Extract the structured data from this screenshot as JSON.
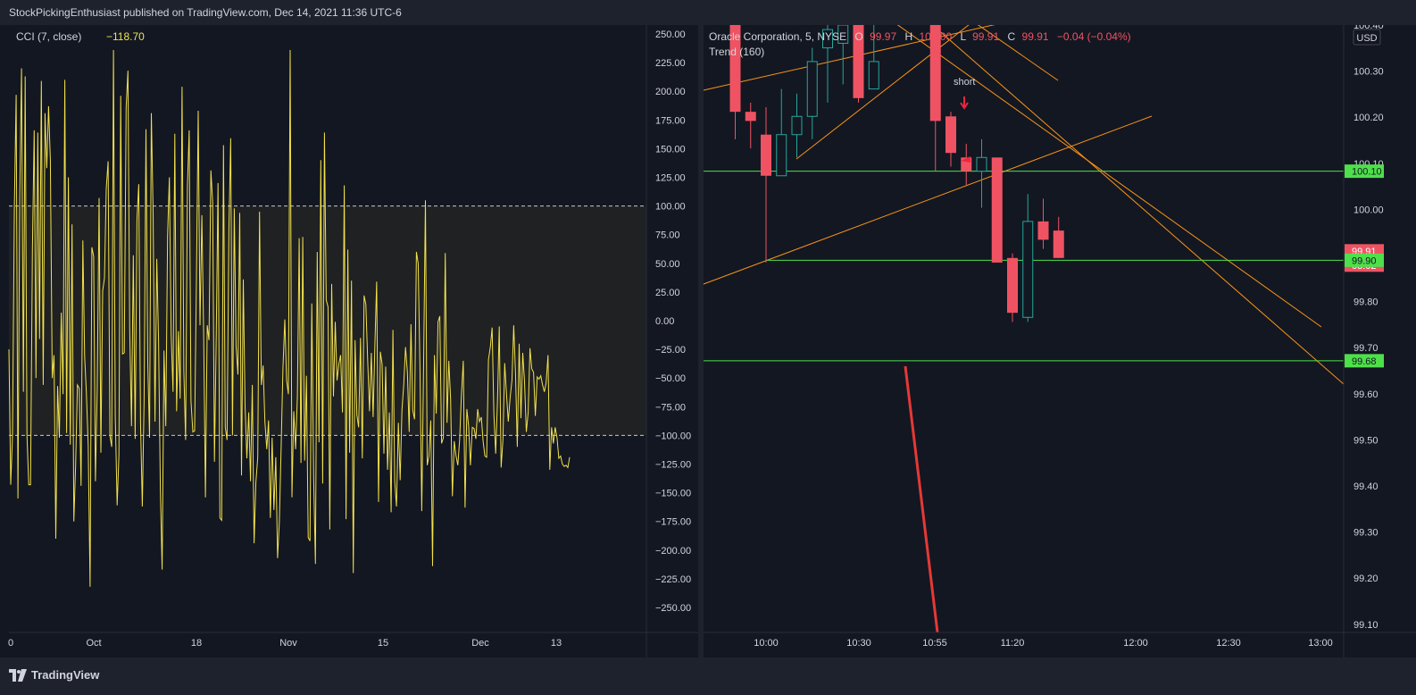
{
  "header": {
    "published_text": "StockPickingEnthusiast published on TradingView.com, Dec 14, 2021 11:36 UTC-6"
  },
  "footer": {
    "brand": "TradingView"
  },
  "colors": {
    "background": "#131722",
    "bar_bg": "#1e222d",
    "cci_line": "#f2e14c",
    "up": "#26a69a",
    "down": "#ef5363",
    "trend": "#f7931a",
    "hline": "#4ee04a",
    "arrow": "#ef2443"
  },
  "chart_data": [
    {
      "type": "line",
      "indicator_label": "CCI (7, close)",
      "indicator_value": "−118.70",
      "yaxis_ticks": [
        "250.00",
        "225.00",
        "200.00",
        "175.00",
        "150.00",
        "125.00",
        "100.00",
        "75.00",
        "50.00",
        "25.00",
        "0.00",
        "−25.00",
        "−50.00",
        "−75.00",
        "−100.00",
        "−125.00",
        "−150.00",
        "−175.00",
        "−200.00",
        "−225.00",
        "−250.00"
      ],
      "ylim": [
        -250,
        250
      ],
      "bands": [
        100,
        -100
      ],
      "xaxis_ticks": [
        "0",
        "Oct",
        "18",
        "Nov",
        "15",
        "Dec",
        "13"
      ],
      "values": [
        -25,
        -143,
        -100,
        100,
        197,
        -155,
        108,
        220,
        -62,
        213,
        -100,
        -143,
        -143,
        62,
        166,
        -50,
        164,
        -16,
        209,
        -56,
        181,
        133,
        187,
        140,
        -50,
        -30,
        -190,
        -57,
        -102,
        7,
        -64,
        210,
        -98,
        125,
        -108,
        84,
        -175,
        -126,
        -56,
        -59,
        -144,
        70,
        -31,
        -64,
        -109,
        -232,
        64,
        56,
        -140,
        -60,
        107,
        -115,
        26,
        37,
        115,
        139,
        -100,
        -110,
        236,
        -83,
        -161,
        -117,
        196,
        -29,
        -28,
        186,
        218,
        -9,
        -92,
        57,
        -103,
        88,
        119,
        -89,
        -162,
        -69,
        167,
        -37,
        -102,
        181,
        94,
        -88,
        54,
        -17,
        -147,
        -217,
        -26,
        -92,
        74,
        125,
        -12,
        -62,
        163,
        -79,
        -9,
        -68,
        204,
        -44,
        -104,
        117,
        166,
        -70,
        -97,
        -96,
        35,
        183,
        -4,
        92,
        -11,
        -154,
        -4,
        -17,
        131,
        103,
        -123,
        -14,
        120,
        -172,
        -174,
        153,
        -93,
        -104,
        80,
        159,
        -100,
        98,
        -22,
        -47,
        94,
        -135,
        36,
        -74,
        -120,
        -80,
        -140,
        -56,
        -194,
        -141,
        -119,
        95,
        -56,
        -39,
        -88,
        -112,
        -87,
        -172,
        -102,
        -165,
        -119,
        -207,
        -175,
        -110,
        -42,
        1,
        -52,
        -64,
        236,
        -154,
        -79,
        -112,
        -66,
        72,
        -124,
        73,
        -122,
        -48,
        -189,
        -192,
        15,
        -137,
        -212,
        60,
        -106,
        140,
        -142,
        164,
        18,
        12,
        -182,
        32,
        -66,
        -1,
        -52,
        -38,
        -30,
        -80,
        118,
        -173,
        62,
        -115,
        35,
        -220,
        -17,
        -82,
        -93,
        -15,
        -120,
        22,
        14,
        -34,
        -79,
        -28,
        -84,
        -21,
        34,
        -158,
        -27,
        -38,
        -116,
        -40,
        -130,
        -80,
        -167,
        -8,
        -140,
        -162,
        -89,
        -139,
        -78,
        -56,
        -23,
        -45,
        -97,
        -3,
        -78,
        -86,
        60,
        50,
        -43,
        -166,
        -42,
        105,
        -126,
        -118,
        -87,
        -214,
        -30,
        -81,
        -1,
        4,
        -107,
        -102,
        59,
        -89,
        -35,
        -68,
        -153,
        -105,
        -118,
        -126,
        -104,
        -65,
        -35,
        -163,
        -77,
        -92,
        -126,
        -93,
        -94,
        -103,
        -77,
        -88,
        -84,
        -105,
        -118,
        -119,
        -34,
        -23,
        -6,
        -82,
        -116,
        -70,
        -5,
        -128,
        -104,
        -37,
        -64,
        -88,
        -67,
        -52,
        -4,
        -46,
        -110,
        -20,
        -85,
        -28,
        -53,
        -97,
        -80,
        -24,
        -42,
        -45,
        -83,
        -49,
        -51,
        -48,
        -56,
        -62,
        -54,
        -30,
        -130,
        -93,
        -107,
        -93,
        -102,
        -120,
        -118,
        -125,
        -127,
        -126,
        -128,
        -119
      ]
    },
    {
      "type": "candlestick",
      "legend": {
        "name": "Oracle Corporation, 5, NYSE",
        "o_label": "O",
        "o": "99.97",
        "h_label": "H",
        "h": "100.00",
        "l_label": "L",
        "l": "99.91",
        "c_label": "C",
        "c": "99.91",
        "change": "−0.04 (−0.04%)"
      },
      "indicator_label": "Trend (160)",
      "currency": "USD",
      "yaxis_ticks": [
        "100.40",
        "100.30",
        "100.20",
        "100.10",
        "100.00",
        "99.90",
        "99.80",
        "99.70",
        "99.60",
        "99.50",
        "99.40",
        "99.30",
        "99.20",
        "99.10"
      ],
      "ylim": [
        99.1,
        100.42
      ],
      "xaxis_ticks": [
        "10:00",
        "10:30",
        "10:55",
        "11:20",
        "12:00",
        "12:30",
        "13:00"
      ],
      "price_labels": [
        {
          "value": "100.10",
          "price": 100.1,
          "kind": "hline"
        },
        {
          "value": "99.91",
          "price": 99.91,
          "kind": "last"
        },
        {
          "value": "03:02",
          "kind": "countdown"
        },
        {
          "value": "99.90",
          "price": 99.905,
          "kind": "hline"
        },
        {
          "value": "99.68",
          "price": 99.685,
          "kind": "hline"
        }
      ],
      "annotation": "short",
      "candles": [
        {
          "t": "09:50",
          "o": 100.42,
          "h": 100.42,
          "l": 100.17,
          "c": 100.23
        },
        {
          "t": "09:55",
          "o": 100.23,
          "h": 100.25,
          "l": 100.15,
          "c": 100.21
        },
        {
          "t": "10:00",
          "o": 100.18,
          "h": 100.24,
          "l": 99.9,
          "c": 100.09
        },
        {
          "t": "10:05",
          "o": 100.09,
          "h": 100.28,
          "l": 100.09,
          "c": 100.18
        },
        {
          "t": "10:10",
          "o": 100.18,
          "h": 100.27,
          "l": 100.13,
          "c": 100.22
        },
        {
          "t": "10:15",
          "o": 100.22,
          "h": 100.37,
          "l": 100.17,
          "c": 100.34
        },
        {
          "t": "10:20",
          "o": 100.37,
          "h": 100.42,
          "l": 100.25,
          "c": 100.41
        },
        {
          "t": "10:25",
          "o": 100.38,
          "h": 100.42,
          "l": 100.29,
          "c": 100.42
        },
        {
          "t": "10:30",
          "o": 100.42,
          "h": 100.42,
          "l": 100.25,
          "c": 100.26
        },
        {
          "t": "10:35",
          "o": 100.28,
          "h": 100.42,
          "l": 100.28,
          "c": 100.34
        },
        {
          "t": "10:55",
          "o": 100.42,
          "h": 100.42,
          "l": 100.1,
          "c": 100.21
        },
        {
          "t": "11:00",
          "o": 100.22,
          "h": 100.23,
          "l": 100.11,
          "c": 100.14
        },
        {
          "t": "11:05",
          "o": 100.13,
          "h": 100.16,
          "l": 100.07,
          "c": 100.1
        },
        {
          "t": "11:10",
          "o": 100.1,
          "h": 100.17,
          "l": 100.02,
          "c": 100.13
        },
        {
          "t": "11:15",
          "o": 100.13,
          "h": 100.13,
          "l": 99.9,
          "c": 99.9
        },
        {
          "t": "11:20",
          "o": 99.91,
          "h": 99.92,
          "l": 99.77,
          "c": 99.79
        },
        {
          "t": "11:25",
          "o": 99.78,
          "h": 100.05,
          "l": 99.77,
          "c": 99.99
        },
        {
          "t": "11:30",
          "o": 99.99,
          "h": 100.04,
          "l": 99.93,
          "c": 99.95
        },
        {
          "t": "11:35",
          "o": 99.97,
          "h": 100.0,
          "l": 99.91,
          "c": 99.91
        }
      ]
    }
  ]
}
